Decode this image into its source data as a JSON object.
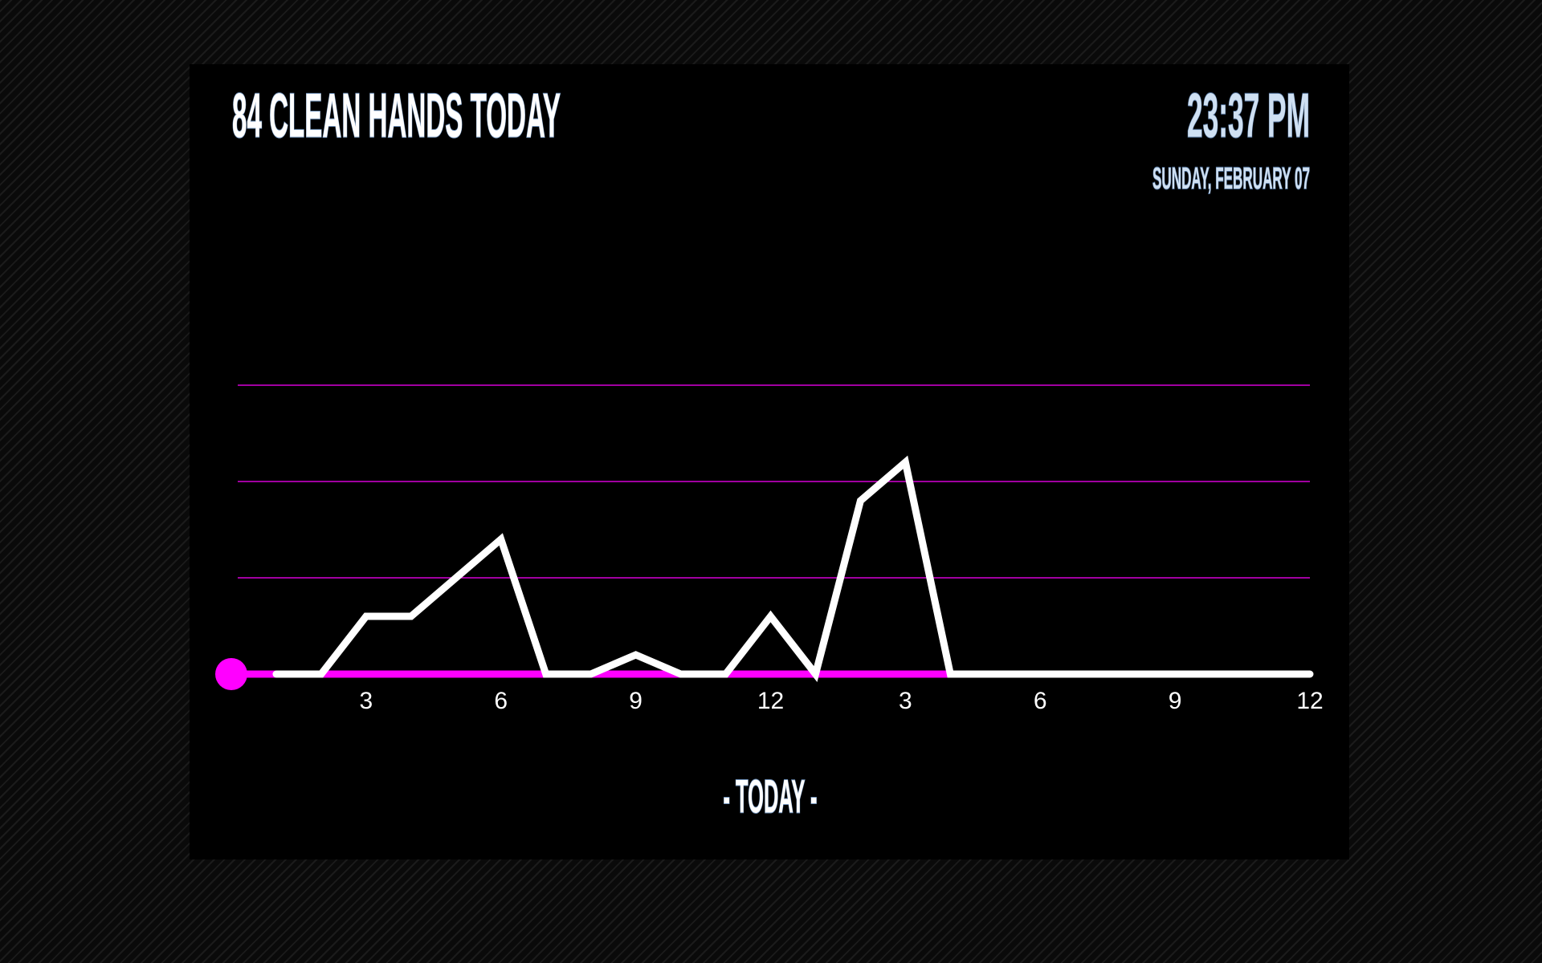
{
  "header": {
    "title": "84 CLEAN HANDS TODAY",
    "time": "23:37 PM",
    "date": "SUNDAY, FEBRUARY 07"
  },
  "chart_data": {
    "type": "line",
    "x_label": "- TODAY -",
    "x": [
      1,
      2,
      3,
      4,
      5,
      6,
      7,
      8,
      9,
      10,
      11,
      12,
      13,
      14,
      15,
      16,
      17,
      18,
      19,
      20,
      21,
      22,
      23,
      24
    ],
    "values": [
      0,
      0,
      6,
      6,
      10,
      14,
      0,
      0,
      2,
      0,
      0,
      6,
      0,
      18,
      22,
      0,
      0,
      0,
      0,
      0,
      0,
      0,
      0,
      0
    ],
    "color": "#ffffff",
    "xlim": [
      0,
      24
    ],
    "xticks": [
      3,
      6,
      9,
      12,
      {
        "value": 15,
        "label": "3"
      },
      {
        "value": 18,
        "label": "6"
      },
      {
        "value": 21,
        "label": "9"
      },
      {
        "value": 24,
        "label": "12"
      }
    ],
    "ylim": [
      0,
      30
    ],
    "yticks": [
      10,
      20,
      30
    ],
    "grid": true,
    "grid_color": "#ff00ff",
    "baseline_highlight": {
      "color": "#ff00ff",
      "xlim": [
        0,
        16
      ]
    }
  }
}
